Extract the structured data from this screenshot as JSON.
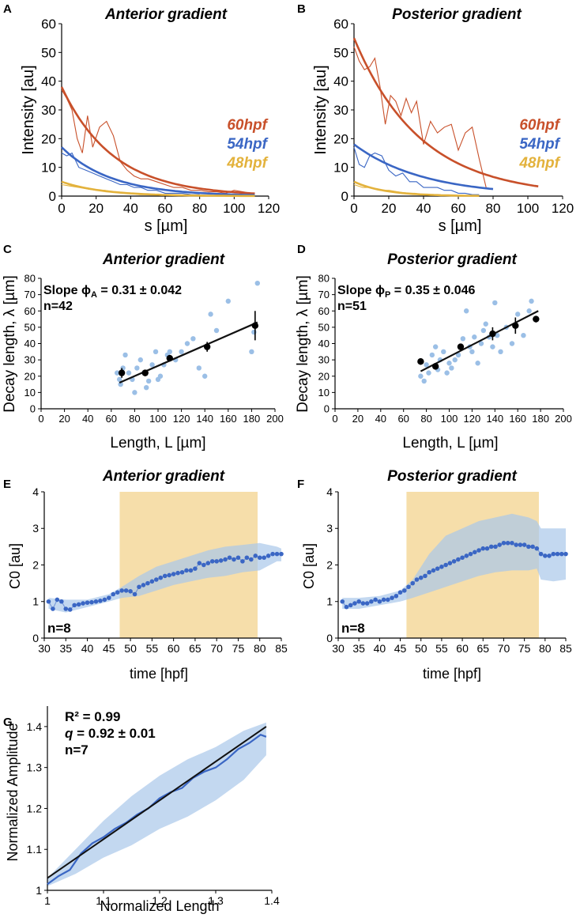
{
  "colors": {
    "hpf60": "#c8502a",
    "hpf54": "#3a66c4",
    "hpf48": "#e3b23c",
    "scatter_light": "#9bbfe6",
    "band": "#a9c8ea",
    "shade": "#f6deaa",
    "mean_line": "#3a66c4",
    "fit": "#111111"
  },
  "chart_data": [
    {
      "id": "A",
      "type": "line",
      "title": "Anterior gradient",
      "xlabel": "s [µm]",
      "ylabel": "Intensity [au]",
      "xlim": [
        0,
        120
      ],
      "ylim": [
        0,
        60
      ],
      "xticks": [
        "0",
        "20",
        "40",
        "60",
        "80",
        "100",
        "120"
      ],
      "yticks": [
        "0",
        "10",
        "20",
        "30",
        "40",
        "50",
        "60"
      ],
      "legend": [
        "60hpf",
        "54hpf",
        "48hpf"
      ],
      "series": [
        {
          "name": "60hpf",
          "kind": "fit",
          "fit": {
            "a": 38,
            "lambda": 30,
            "xmax": 112
          }
        },
        {
          "name": "60hpf",
          "kind": "data",
          "x": [
            0,
            3,
            6,
            9,
            12,
            15,
            18,
            22,
            26,
            30,
            34,
            38,
            42,
            46,
            50,
            55,
            60,
            65,
            70,
            75,
            80,
            85,
            90,
            95,
            100,
            105,
            110
          ],
          "y": [
            37,
            34,
            30,
            20,
            15,
            28,
            17,
            24,
            26,
            21,
            12,
            9,
            7,
            6,
            6,
            5,
            4,
            3,
            3,
            2,
            2,
            1.5,
            1.5,
            1,
            2,
            1.5,
            1
          ]
        },
        {
          "name": "54hpf",
          "kind": "fit",
          "fit": {
            "a": 17,
            "lambda": 29,
            "xmax": 112
          }
        },
        {
          "name": "54hpf",
          "kind": "data",
          "x": [
            0,
            3,
            6,
            10,
            14,
            18,
            22,
            26,
            30,
            34,
            38,
            42,
            46,
            50,
            55,
            60,
            65,
            70,
            75,
            80
          ],
          "y": [
            15,
            14,
            15,
            10,
            9,
            8,
            7,
            6,
            5,
            4,
            4,
            3,
            3,
            2,
            2,
            1,
            1,
            1,
            0.5,
            0.5
          ]
        },
        {
          "name": "48hpf",
          "kind": "fit",
          "fit": {
            "a": 5,
            "lambda": 24,
            "xmax": 112
          }
        },
        {
          "name": "48hpf",
          "kind": "data",
          "x": [
            0,
            5,
            10,
            15,
            20,
            25,
            30,
            35,
            40,
            45,
            50
          ],
          "y": [
            4,
            3.5,
            3,
            2.5,
            2,
            2,
            1.5,
            1,
            1,
            0.5,
            0.5
          ]
        }
      ]
    },
    {
      "id": "B",
      "type": "line",
      "title": "Posterior gradient",
      "xlabel": "s [µm]",
      "ylabel": "Intensity [au]",
      "xlim": [
        0,
        120
      ],
      "ylim": [
        0,
        60
      ],
      "xticks": [
        "0",
        "20",
        "40",
        "60",
        "80",
        "100",
        "120"
      ],
      "yticks": [
        "0",
        "10",
        "20",
        "30",
        "40",
        "50",
        "60"
      ],
      "legend": [
        "60hpf",
        "54hpf",
        "48hpf"
      ],
      "series": [
        {
          "name": "60hpf",
          "kind": "fit",
          "fit": {
            "a": 55,
            "lambda": 38,
            "xmax": 107
          }
        },
        {
          "name": "60hpf",
          "kind": "data",
          "x": [
            0,
            3,
            6,
            9,
            12,
            15,
            18,
            21,
            24,
            27,
            30,
            33,
            36,
            40,
            44,
            48,
            52,
            56,
            60,
            64,
            68,
            72,
            76
          ],
          "y": [
            52,
            47,
            44,
            45,
            48,
            38,
            25,
            35,
            33,
            28,
            34,
            29,
            33,
            18,
            26,
            22,
            24,
            25,
            16,
            22,
            24,
            13,
            3
          ]
        },
        {
          "name": "54hpf",
          "kind": "fit",
          "fit": {
            "a": 18,
            "lambda": 40,
            "xmax": 80
          }
        },
        {
          "name": "54hpf",
          "kind": "data",
          "x": [
            0,
            3,
            6,
            9,
            12,
            16,
            20,
            24,
            28,
            32,
            36,
            40,
            44,
            48,
            52,
            56,
            60,
            64,
            68,
            72
          ],
          "y": [
            17,
            11,
            10,
            14,
            15,
            14,
            9,
            7,
            8,
            5,
            5,
            3,
            3,
            3,
            2,
            2,
            1,
            1,
            0.5,
            0.5
          ]
        },
        {
          "name": "48hpf",
          "kind": "fit",
          "fit": {
            "a": 5,
            "lambda": 18,
            "xmax": 72
          }
        },
        {
          "name": "48hpf",
          "kind": "data",
          "x": [
            0,
            5,
            10,
            15,
            20,
            25,
            30,
            35,
            40
          ],
          "y": [
            4,
            3,
            3,
            2,
            2,
            1.5,
            1,
            1,
            0.5
          ]
        }
      ]
    },
    {
      "id": "C",
      "type": "scatter",
      "title": "Anterior gradient",
      "xlabel": "Length, L [µm]",
      "ylabel": "Decay length, λ [µm]",
      "xlim": [
        0,
        200
      ],
      "ylim": [
        0,
        80
      ],
      "xticks": [
        "0",
        "20",
        "40",
        "60",
        "80",
        "100",
        "120",
        "140",
        "160",
        "180",
        "200"
      ],
      "yticks": [
        "0",
        "10",
        "20",
        "30",
        "40",
        "50",
        "60",
        "70",
        "80"
      ],
      "annotation": {
        "slope_prefix": "Slope ϕ",
        "slope_sub": "A",
        "slope_value": " = 0.31 ± 0.042",
        "n": "n=42"
      },
      "fit_line": {
        "x": [
          67,
          185
        ],
        "y": [
          16,
          53
        ]
      },
      "points": {
        "x": [
          65,
          67,
          68,
          70,
          72,
          75,
          78,
          80,
          82,
          85,
          88,
          90,
          92,
          95,
          98,
          100,
          102,
          105,
          108,
          110,
          115,
          120,
          125,
          130,
          135,
          140,
          142,
          145,
          150,
          160,
          180,
          182,
          185
        ],
        "y": [
          22,
          18,
          15,
          25,
          33,
          22,
          18,
          10,
          25,
          30,
          22,
          13,
          17,
          27,
          35,
          18,
          20,
          27,
          33,
          35,
          30,
          35,
          40,
          43,
          25,
          20,
          38,
          58,
          48,
          66,
          35,
          47,
          77
        ]
      },
      "means": {
        "x": [
          69,
          89,
          110,
          142,
          183
        ],
        "y": [
          22,
          22,
          31,
          38,
          51
        ],
        "err": [
          3,
          2,
          2,
          3,
          9
        ]
      }
    },
    {
      "id": "D",
      "type": "scatter",
      "title": "Posterior gradient",
      "xlabel": "Length, L [µm]",
      "ylabel": "Decay length, λ [µm]",
      "xlim": [
        0,
        200
      ],
      "ylim": [
        0,
        80
      ],
      "xticks": [
        "0",
        "20",
        "40",
        "60",
        "80",
        "100",
        "120",
        "140",
        "160",
        "180",
        "200"
      ],
      "yticks": [
        "0",
        "10",
        "20",
        "30",
        "40",
        "50",
        "60",
        "70",
        "80"
      ],
      "annotation": {
        "slope_prefix": "Slope ϕ",
        "slope_sub": "P",
        "slope_value": " = 0.35 ± 0.046",
        "n": "n=51"
      },
      "fit_line": {
        "x": [
          75,
          178
        ],
        "y": [
          23,
          60
        ]
      },
      "points": {
        "x": [
          75,
          78,
          80,
          82,
          85,
          88,
          90,
          92,
          95,
          98,
          100,
          102,
          105,
          108,
          110,
          112,
          115,
          118,
          120,
          122,
          125,
          128,
          130,
          132,
          135,
          138,
          140,
          142,
          145,
          150,
          155,
          160,
          165,
          170,
          172
        ],
        "y": [
          20,
          17,
          27,
          22,
          33,
          38,
          24,
          30,
          35,
          22,
          28,
          25,
          30,
          33,
          38,
          43,
          60,
          38,
          35,
          44,
          28,
          40,
          48,
          52,
          44,
          38,
          65,
          45,
          35,
          50,
          40,
          58,
          45,
          60,
          66
        ]
      },
      "means": {
        "x": [
          75,
          88,
          110,
          138,
          158,
          176
        ],
        "y": [
          29,
          26,
          38,
          46,
          51,
          55
        ],
        "err": [
          2,
          2,
          2,
          4,
          5,
          2
        ]
      }
    },
    {
      "id": "E",
      "type": "line",
      "title": "Anterior gradient",
      "xlabel": "time [hpf]",
      "ylabel": "C0 [au]",
      "xlim": [
        30,
        85
      ],
      "ylim": [
        0,
        4
      ],
      "xticks": [
        "30",
        "35",
        "40",
        "45",
        "50",
        "55",
        "60",
        "65",
        "70",
        "75",
        "80",
        "85"
      ],
      "yticks": [
        "0",
        "1",
        "2",
        "3",
        "4"
      ],
      "shade": [
        47.5,
        79.5
      ],
      "n": "n=8",
      "points": {
        "x": [
          31,
          32,
          33,
          34,
          35,
          36,
          37,
          38,
          39,
          40,
          41,
          42,
          43,
          44,
          45,
          46,
          47,
          48,
          49,
          50,
          51,
          52,
          53,
          54,
          55,
          56,
          57,
          58,
          59,
          60,
          61,
          62,
          63,
          64,
          65,
          66,
          67,
          68,
          69,
          70,
          71,
          72,
          73,
          74,
          75,
          76,
          77,
          78,
          79,
          80,
          81,
          82,
          83,
          84,
          85
        ],
        "y": [
          1.0,
          0.8,
          1.05,
          1.0,
          0.8,
          0.78,
          0.9,
          0.92,
          0.95,
          0.97,
          0.98,
          1.0,
          1.02,
          1.05,
          1.1,
          1.2,
          1.25,
          1.3,
          1.3,
          1.28,
          1.2,
          1.4,
          1.45,
          1.5,
          1.55,
          1.6,
          1.65,
          1.7,
          1.72,
          1.75,
          1.78,
          1.8,
          1.85,
          1.85,
          1.9,
          2.05,
          2.0,
          2.05,
          2.1,
          2.1,
          2.12,
          2.15,
          2.2,
          2.15,
          2.2,
          2.1,
          2.2,
          2.15,
          2.25,
          2.2,
          2.2,
          2.25,
          2.3,
          2.3,
          2.3
        ]
      },
      "band": {
        "x": [
          31,
          35,
          40,
          45,
          48,
          52,
          56,
          60,
          64,
          68,
          72,
          76,
          80,
          84,
          85
        ],
        "lo": [
          0.8,
          0.7,
          0.85,
          1.0,
          1.1,
          1.15,
          1.3,
          1.45,
          1.55,
          1.65,
          1.7,
          1.8,
          1.85,
          2.1,
          2.1
        ],
        "hi": [
          1.1,
          1.05,
          1.05,
          1.2,
          1.4,
          1.7,
          1.95,
          2.1,
          2.25,
          2.4,
          2.5,
          2.55,
          2.6,
          2.5,
          2.45
        ]
      }
    },
    {
      "id": "F",
      "type": "line",
      "title": "Posterior gradient",
      "xlabel": "time [hpf]",
      "ylabel": "C0 [au]",
      "xlim": [
        30,
        85
      ],
      "ylim": [
        0,
        4
      ],
      "xticks": [
        "30",
        "35",
        "40",
        "45",
        "50",
        "55",
        "60",
        "65",
        "70",
        "75",
        "80",
        "85"
      ],
      "yticks": [
        "0",
        "1",
        "2",
        "3",
        "4"
      ],
      "shade": [
        46.5,
        78.5
      ],
      "n": "n=8",
      "points": {
        "x": [
          31,
          32,
          33,
          34,
          35,
          36,
          37,
          38,
          39,
          40,
          41,
          42,
          43,
          44,
          45,
          46,
          47,
          48,
          49,
          50,
          51,
          52,
          53,
          54,
          55,
          56,
          57,
          58,
          59,
          60,
          61,
          62,
          63,
          64,
          65,
          66,
          67,
          68,
          69,
          70,
          71,
          72,
          73,
          74,
          75,
          76,
          77,
          78,
          79,
          80,
          81,
          82,
          83,
          84,
          85
        ],
        "y": [
          1.0,
          0.85,
          0.9,
          0.95,
          1.0,
          0.95,
          0.95,
          1.0,
          1.05,
          1.0,
          1.05,
          1.05,
          1.1,
          1.15,
          1.25,
          1.3,
          1.4,
          1.5,
          1.6,
          1.65,
          1.7,
          1.8,
          1.85,
          1.9,
          1.95,
          2.0,
          2.05,
          2.1,
          2.15,
          2.2,
          2.25,
          2.3,
          2.35,
          2.4,
          2.45,
          2.45,
          2.5,
          2.5,
          2.55,
          2.6,
          2.6,
          2.6,
          2.55,
          2.55,
          2.55,
          2.5,
          2.5,
          2.45,
          2.3,
          2.25,
          2.25,
          2.3,
          2.3,
          2.3,
          2.3
        ]
      },
      "band": {
        "x": [
          31,
          35,
          40,
          45,
          48,
          52,
          56,
          60,
          64,
          68,
          72,
          76,
          78,
          79,
          82,
          85
        ],
        "lo": [
          0.8,
          0.8,
          0.9,
          1.0,
          1.1,
          1.25,
          1.4,
          1.55,
          1.7,
          1.8,
          1.85,
          1.85,
          1.9,
          1.6,
          1.55,
          1.6
        ],
        "hi": [
          1.1,
          1.1,
          1.15,
          1.3,
          1.6,
          2.3,
          2.8,
          3.0,
          3.2,
          3.3,
          3.4,
          3.3,
          3.2,
          3.0,
          3.0,
          3.0
        ]
      }
    },
    {
      "id": "G",
      "type": "line",
      "xlabel": "Normalized Length",
      "ylabel": "Normalized Amplitude",
      "xlim": [
        1,
        1.4
      ],
      "ylim": [
        1,
        1.45
      ],
      "xticks": [
        "1",
        "1.1",
        "1.2",
        "1.3",
        "1.4"
      ],
      "yticks": [
        "1",
        "1.1",
        "1.2",
        "1.3",
        "1.4"
      ],
      "annotation": {
        "r2": "R² = 0.99",
        "q_symbol": "q",
        "q_value": " = 0.92 ± 0.01",
        "n": "n=7"
      },
      "fit_line": {
        "x": [
          1,
          1.39
        ],
        "y": [
          1.03,
          1.4
        ]
      },
      "mean": {
        "x": [
          1,
          1.02,
          1.04,
          1.06,
          1.08,
          1.1,
          1.12,
          1.14,
          1.16,
          1.18,
          1.2,
          1.22,
          1.24,
          1.26,
          1.28,
          1.3,
          1.32,
          1.34,
          1.36,
          1.38,
          1.39
        ],
        "y": [
          1.015,
          1.035,
          1.05,
          1.09,
          1.115,
          1.13,
          1.15,
          1.165,
          1.185,
          1.2,
          1.225,
          1.24,
          1.25,
          1.275,
          1.29,
          1.3,
          1.32,
          1.345,
          1.36,
          1.38,
          1.375
        ]
      },
      "band": {
        "x": [
          1,
          1.05,
          1.1,
          1.15,
          1.2,
          1.25,
          1.3,
          1.35,
          1.39
        ],
        "lo": [
          1.01,
          1.04,
          1.08,
          1.11,
          1.15,
          1.18,
          1.22,
          1.27,
          1.33
        ],
        "hi": [
          1.03,
          1.1,
          1.17,
          1.23,
          1.28,
          1.32,
          1.35,
          1.39,
          1.41
        ]
      }
    }
  ]
}
